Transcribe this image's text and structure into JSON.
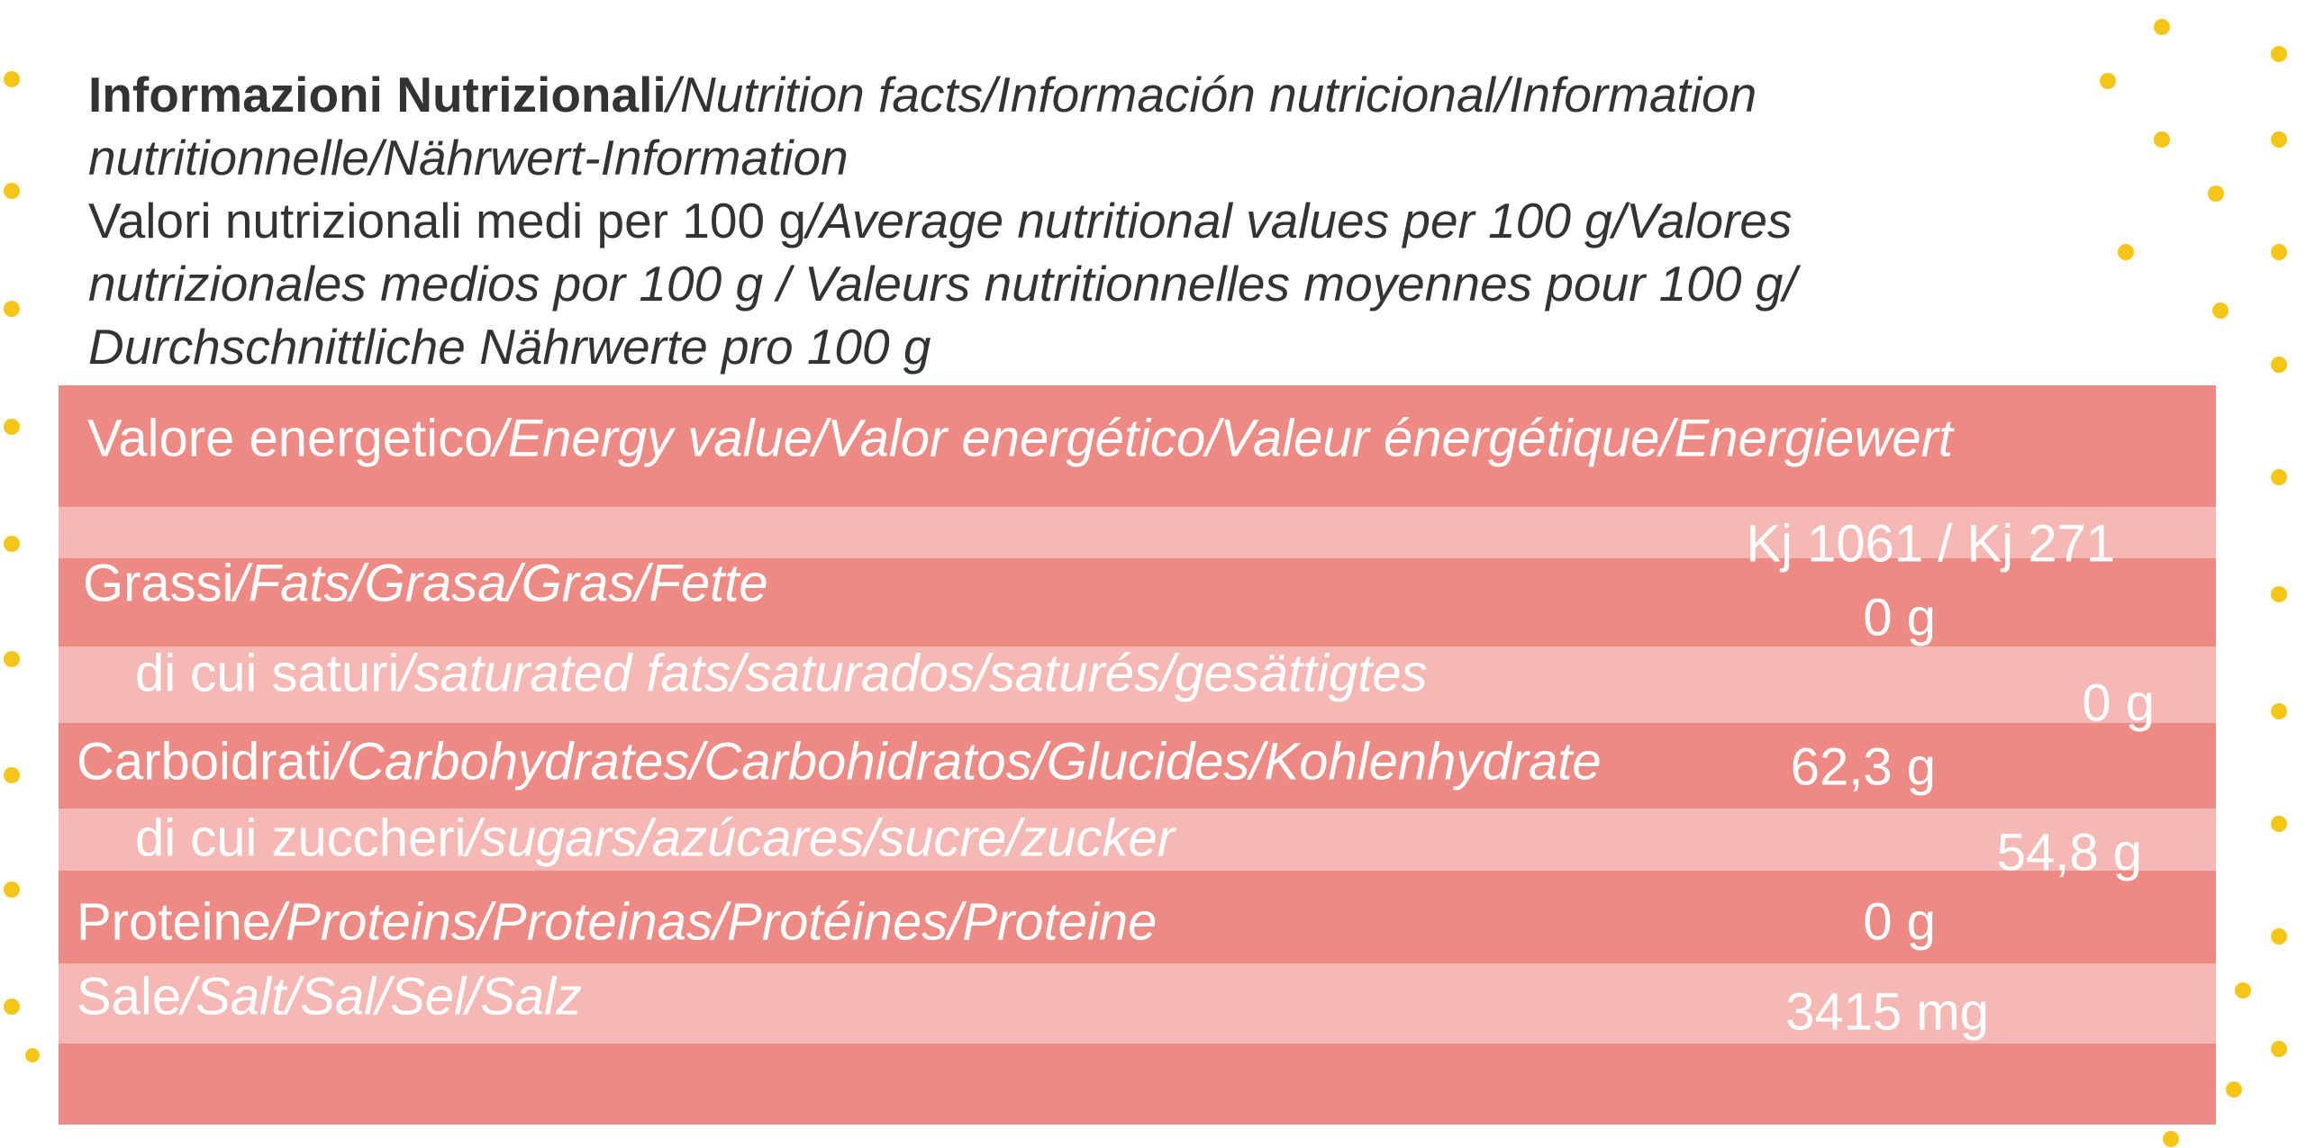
{
  "header": {
    "title_bold": "Informazioni Nutrizionali",
    "title_rest": "/Nutrition facts/Información nutricional/Information nutritionnelle/Nährwert-Information",
    "subtitle_plain": "Valori nutrizionali medi per 100 g",
    "subtitle_rest": "/Average nutritional values per 100 g/Valores nutrizionales medios por 100 g / Valeurs nutritionnelles moyennes pour 100 g/ Durchschnittliche Nährwerte pro 100 g"
  },
  "table": {
    "rows": [
      {
        "label": "Valore energetico",
        "label_rest": "/Energy value/Valor energético/Valeur énergétique/Energiewert",
        "value": "Kj 1061 / Kj 271"
      },
      {
        "label": "Grassi",
        "label_rest": "/Fats/Grasa/Gras/Fette",
        "value": "0 g"
      },
      {
        "label": "di cui saturi",
        "label_rest": "/saturated fats/saturados/saturés/gesättigtes",
        "value": "0 g"
      },
      {
        "label": "Carboidrati",
        "label_rest": "/Carbohydrates/Carbohidratos/Glucides/Kohlenhydrate",
        "value": "62,3 g"
      },
      {
        "label": "di cui zuccheri",
        "label_rest": "/sugars/azúcares/sucre/zucker",
        "value": "54,8 g"
      },
      {
        "label": "Proteine",
        "label_rest": "/Proteins/Proteinas/Protéines/Proteine",
        "value": "0 g"
      },
      {
        "label": "Sale",
        "label_rest": "/Salt/Sal/Sel/Salz",
        "value": "3415 mg"
      }
    ]
  }
}
